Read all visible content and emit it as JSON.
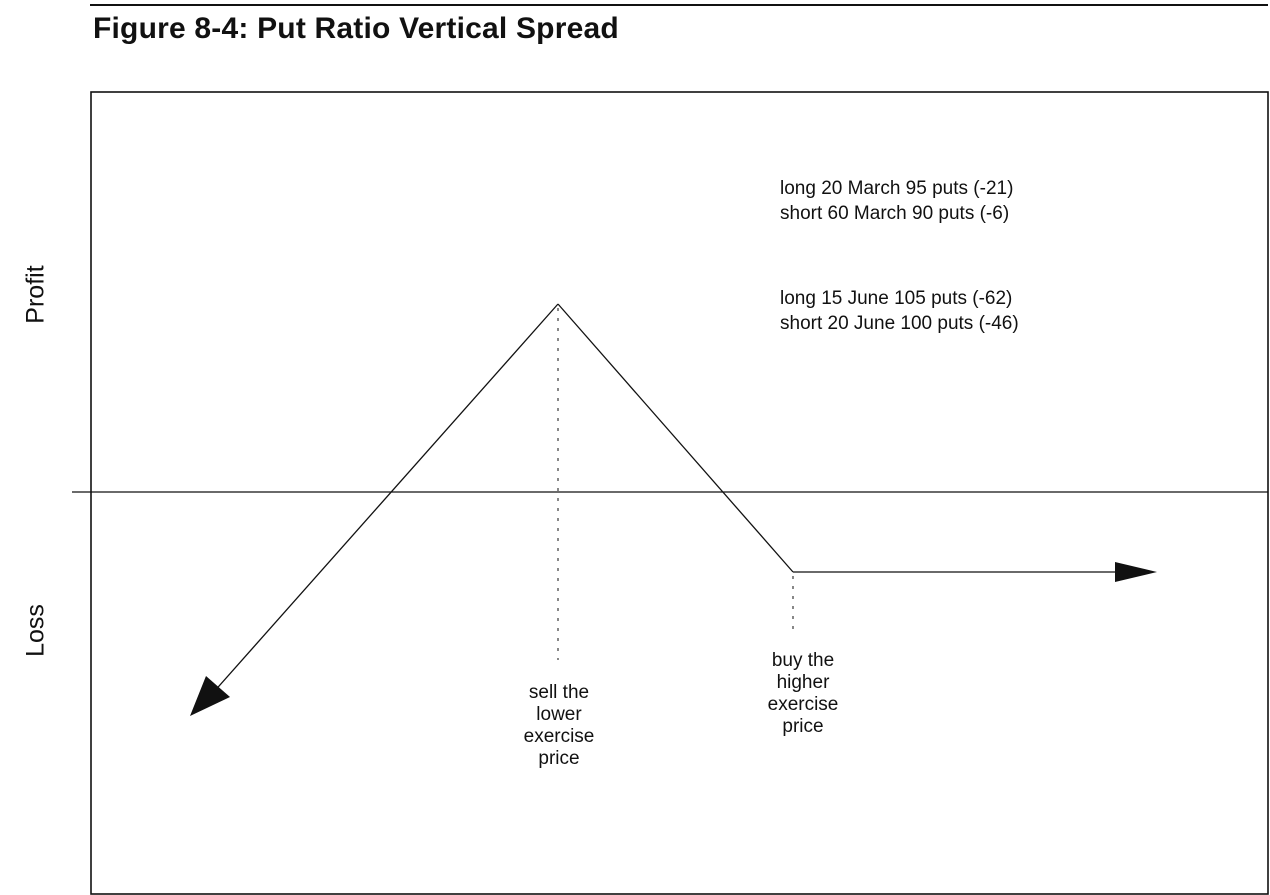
{
  "figure": {
    "title": "Figure 8-4: Put Ratio Vertical Spread"
  },
  "axes": {
    "profit_label": "Profit",
    "loss_label": "Loss"
  },
  "positions": {
    "group1": [
      "long 20 March 95 puts (-21)",
      "short 60 March 90 puts (-6)"
    ],
    "group2": [
      "long 15 June 105 puts (-62)",
      "short 20 June 100 puts (-46)"
    ]
  },
  "annotations": {
    "lower_strike": [
      "sell the",
      "lower",
      "exercise",
      "price"
    ],
    "higher_strike": [
      "buy the",
      "higher",
      "exercise",
      "price"
    ]
  }
}
